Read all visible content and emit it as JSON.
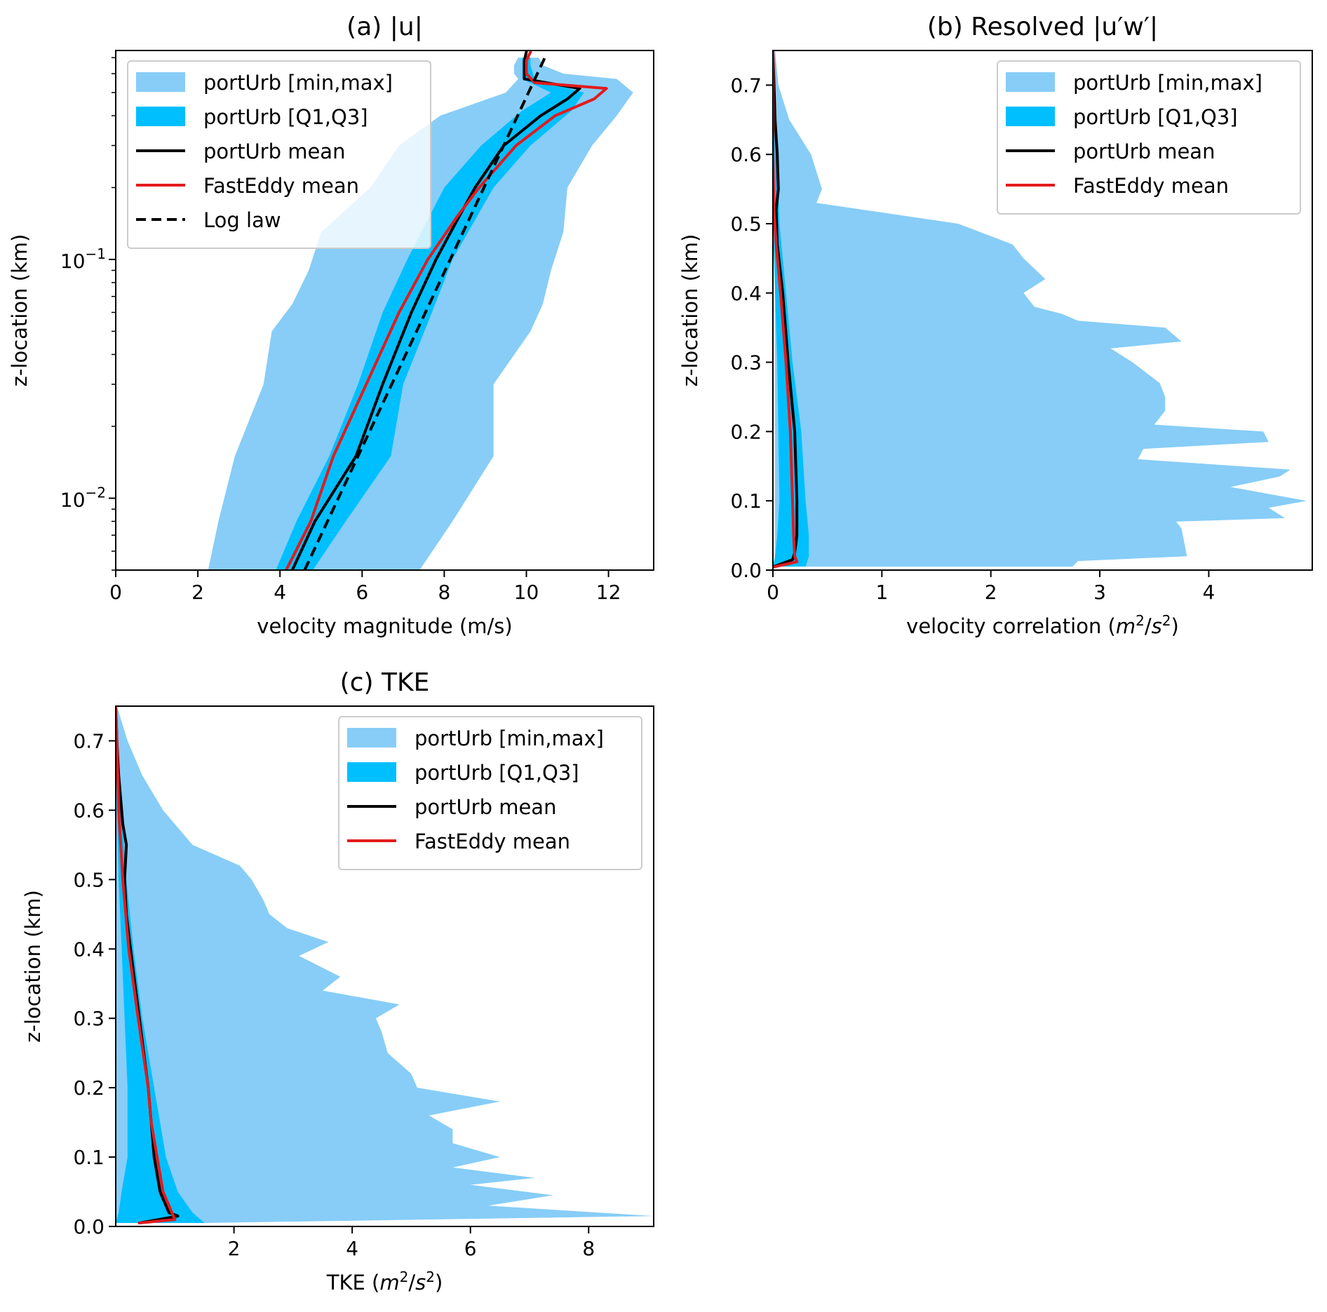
{
  "chart_data": [
    {
      "type": "area",
      "panel": "a",
      "title": "(a) |u|",
      "xlabel": "velocity magnitude (m/s)",
      "ylabel": "z-location (km)",
      "xlim": [
        0,
        13.1
      ],
      "ylim": [
        0.005,
        0.75
      ],
      "yscale": "log",
      "x_ticks": [
        "0",
        "2",
        "4",
        "6",
        "8",
        "10",
        "12"
      ],
      "x_tick_values": [
        0,
        2,
        4,
        6,
        8,
        10,
        12
      ],
      "y_ticks": [
        {
          "value": 0.1,
          "base": "10",
          "exp": "−1"
        },
        {
          "value": 0.01,
          "base": "10",
          "exp": "−2"
        }
      ],
      "legend": {
        "position": "top-left",
        "entries": [
          {
            "label": "portUrb [min,max]",
            "kind": "patch",
            "color": "#87cdf7"
          },
          {
            "label": "portUrb [Q1,Q3]",
            "kind": "patch",
            "color": "#00bfff"
          },
          {
            "label": "portUrb mean",
            "kind": "line",
            "color": "#000000"
          },
          {
            "label": "FastEddy mean",
            "kind": "line",
            "color": "#e31a1c"
          },
          {
            "label": "Log law",
            "kind": "dashed",
            "color": "#000000"
          }
        ]
      },
      "series": [
        {
          "name": "portUrb [min,max]",
          "kind": "band",
          "color": "#87cdf7",
          "z": [
            0.005,
            0.008,
            0.015,
            0.03,
            0.05,
            0.065,
            0.09,
            0.13,
            0.2,
            0.3,
            0.4,
            0.5,
            0.57,
            0.6,
            0.65,
            0.7
          ],
          "lower": [
            2.25,
            2.5,
            2.9,
            3.6,
            3.8,
            4.3,
            4.7,
            5.0,
            6.2,
            6.9,
            7.9,
            9.5,
            9.8,
            9.7,
            9.7,
            9.8
          ],
          "upper": [
            7.4,
            8.2,
            9.2,
            9.2,
            10.1,
            10.4,
            10.6,
            10.9,
            11.0,
            11.6,
            12.2,
            12.6,
            12.2,
            10.9,
            10.4,
            10.3
          ]
        },
        {
          "name": "portUrb [Q1,Q3]",
          "kind": "band",
          "color": "#00bfff",
          "z": [
            0.005,
            0.008,
            0.015,
            0.03,
            0.06,
            0.1,
            0.2,
            0.3,
            0.42,
            0.5,
            0.57,
            0.65,
            0.7
          ],
          "lower": [
            3.9,
            4.4,
            5.2,
            5.9,
            6.5,
            7.1,
            8.0,
            8.9,
            9.9,
            10.6,
            9.9,
            9.9,
            9.9
          ],
          "upper": [
            4.8,
            5.6,
            6.7,
            7.0,
            7.7,
            8.2,
            9.2,
            10.1,
            11.1,
            11.4,
            10.2,
            10.1,
            10.1
          ]
        },
        {
          "name": "portUrb mean",
          "kind": "line",
          "color": "#000000",
          "z": [
            0.005,
            0.008,
            0.015,
            0.03,
            0.06,
            0.1,
            0.15,
            0.2,
            0.3,
            0.4,
            0.47,
            0.52,
            0.57,
            0.62,
            0.68,
            0.74
          ],
          "x": [
            4.3,
            4.85,
            5.85,
            6.5,
            7.2,
            7.8,
            8.35,
            8.75,
            9.45,
            10.35,
            11.0,
            11.3,
            9.95,
            9.95,
            9.95,
            10.0
          ]
        },
        {
          "name": "FastEddy mean",
          "kind": "line",
          "color": "#e31a1c",
          "z": [
            0.005,
            0.008,
            0.015,
            0.03,
            0.06,
            0.1,
            0.15,
            0.2,
            0.3,
            0.4,
            0.47,
            0.52,
            0.55,
            0.6,
            0.68,
            0.74
          ],
          "x": [
            4.15,
            4.75,
            5.3,
            6.1,
            6.9,
            7.6,
            8.3,
            8.85,
            9.75,
            10.7,
            11.65,
            11.95,
            10.2,
            10.0,
            10.0,
            10.1
          ]
        },
        {
          "name": "Log law",
          "kind": "dashed",
          "color": "#000000",
          "z": [
            0.005,
            0.7
          ],
          "x": [
            4.6,
            10.45
          ]
        }
      ]
    },
    {
      "type": "area",
      "panel": "b",
      "title": "(b) Resolved |u′w′|",
      "xlabel": "velocity correlation (m²/s²)",
      "xlabel_text": "velocity correlation (",
      "xlabel_unit_m": "m",
      "xlabel_unit_s": "s",
      "xlabel_exp": "2",
      "ylabel": "z-location (km)",
      "xlim": [
        0,
        4.95
      ],
      "ylim": [
        0,
        0.75
      ],
      "x_ticks": [
        "0",
        "1",
        "2",
        "3",
        "4"
      ],
      "x_tick_values": [
        0,
        1,
        2,
        3,
        4
      ],
      "y_ticks": [
        "0.0",
        "0.1",
        "0.2",
        "0.3",
        "0.4",
        "0.5",
        "0.6",
        "0.7"
      ],
      "y_tick_values": [
        0,
        0.1,
        0.2,
        0.3,
        0.4,
        0.5,
        0.6,
        0.7
      ],
      "legend": {
        "position": "top-right",
        "entries": [
          {
            "label": "portUrb [min,max]",
            "kind": "patch",
            "color": "#87cdf7"
          },
          {
            "label": "portUrb [Q1,Q3]",
            "kind": "patch",
            "color": "#00bfff"
          },
          {
            "label": "portUrb mean",
            "kind": "line",
            "color": "#000000"
          },
          {
            "label": "FastEddy mean",
            "kind": "line",
            "color": "#e31a1c"
          }
        ]
      },
      "series": [
        {
          "name": "portUrb [min,max]",
          "kind": "band",
          "color": "#87cdf7",
          "z": [
            0.005,
            0.013,
            0.02,
            0.06,
            0.07,
            0.075,
            0.09,
            0.1,
            0.12,
            0.135,
            0.145,
            0.16,
            0.175,
            0.185,
            0.2,
            0.21,
            0.23,
            0.25,
            0.27,
            0.3,
            0.32,
            0.33,
            0.35,
            0.36,
            0.37,
            0.38,
            0.4,
            0.42,
            0.45,
            0.47,
            0.5,
            0.53,
            0.55,
            0.6,
            0.65,
            0.7,
            0.75
          ],
          "lower": [
            0.02,
            0.02,
            0.02,
            0.02,
            0.02,
            0.02,
            0.02,
            0.02,
            0.02,
            0.02,
            0.02,
            0.02,
            0.02,
            0.02,
            0.02,
            0.02,
            0.02,
            0.02,
            0.02,
            0.02,
            0.02,
            0.02,
            0.02,
            0.02,
            0.02,
            0.02,
            0.02,
            0.02,
            0.02,
            0.02,
            0.01,
            0.0,
            0.0,
            0.0,
            0.0,
            0.0,
            0.0
          ],
          "upper": [
            2.75,
            2.8,
            3.8,
            3.75,
            3.7,
            4.7,
            4.55,
            4.9,
            4.2,
            4.65,
            4.75,
            3.35,
            3.4,
            4.55,
            4.5,
            3.5,
            3.6,
            3.6,
            3.55,
            3.3,
            3.1,
            3.75,
            3.6,
            2.8,
            2.65,
            2.4,
            2.3,
            2.5,
            2.3,
            2.2,
            1.7,
            0.4,
            0.45,
            0.35,
            0.15,
            0.05,
            0.02
          ]
        },
        {
          "name": "portUrb [Q1,Q3]",
          "kind": "band",
          "color": "#00bfff",
          "z": [
            0.005,
            0.02,
            0.05,
            0.1,
            0.2,
            0.3,
            0.4,
            0.5,
            0.6,
            0.7,
            0.75
          ],
          "lower": [
            0.0,
            0.02,
            0.04,
            0.06,
            0.05,
            0.04,
            0.02,
            0.0,
            0.0,
            0.0,
            0.0
          ],
          "upper": [
            0.3,
            0.33,
            0.33,
            0.3,
            0.26,
            0.18,
            0.12,
            0.06,
            0.04,
            0.01,
            0.0
          ]
        },
        {
          "name": "portUrb mean",
          "kind": "line",
          "color": "#000000",
          "z": [
            0.005,
            0.015,
            0.025,
            0.05,
            0.1,
            0.2,
            0.3,
            0.4,
            0.47,
            0.52,
            0.55,
            0.6,
            0.65,
            0.7,
            0.75
          ],
          "x": [
            0.01,
            0.18,
            0.2,
            0.22,
            0.22,
            0.2,
            0.14,
            0.09,
            0.04,
            0.03,
            0.05,
            0.04,
            0.02,
            0.01,
            0.0
          ]
        },
        {
          "name": "FastEddy mean",
          "kind": "line",
          "color": "#e31a1c",
          "z": [
            0.005,
            0.012,
            0.02,
            0.05,
            0.1,
            0.2,
            0.3,
            0.4,
            0.47,
            0.52,
            0.6,
            0.7,
            0.75
          ],
          "x": [
            0.02,
            0.22,
            0.2,
            0.19,
            0.18,
            0.16,
            0.12,
            0.07,
            0.03,
            0.01,
            0.0,
            0.0,
            0.0
          ]
        }
      ]
    },
    {
      "type": "area",
      "panel": "c",
      "title": "(c) TKE",
      "xlabel": "TKE (m²/s²)",
      "xlabel_text": "TKE (",
      "xlabel_unit_m": "m",
      "xlabel_unit_s": "s",
      "xlabel_exp": "2",
      "ylabel": "z-location (km)",
      "xlim": [
        0,
        9.1
      ],
      "ylim": [
        0,
        0.75
      ],
      "x_ticks": [
        "2",
        "4",
        "6",
        "8"
      ],
      "x_tick_values": [
        2,
        4,
        6,
        8
      ],
      "y_ticks": [
        "0.0",
        "0.1",
        "0.2",
        "0.3",
        "0.4",
        "0.5",
        "0.6",
        "0.7"
      ],
      "y_tick_values": [
        0,
        0.1,
        0.2,
        0.3,
        0.4,
        0.5,
        0.6,
        0.7
      ],
      "legend": {
        "position": "top-right",
        "entries": [
          {
            "label": "portUrb [min,max]",
            "kind": "patch",
            "color": "#87cdf7"
          },
          {
            "label": "portUrb [Q1,Q3]",
            "kind": "patch",
            "color": "#00bfff"
          },
          {
            "label": "portUrb mean",
            "kind": "line",
            "color": "#000000"
          },
          {
            "label": "FastEddy mean",
            "kind": "line",
            "color": "#e31a1c"
          }
        ]
      },
      "series": [
        {
          "name": "portUrb [min,max]",
          "kind": "band",
          "color": "#87cdf7",
          "z": [
            0.005,
            0.015,
            0.03,
            0.045,
            0.06,
            0.07,
            0.085,
            0.1,
            0.12,
            0.14,
            0.16,
            0.18,
            0.2,
            0.22,
            0.25,
            0.28,
            0.3,
            0.32,
            0.34,
            0.36,
            0.39,
            0.41,
            0.43,
            0.45,
            0.47,
            0.5,
            0.52,
            0.55,
            0.6,
            0.65,
            0.7,
            0.75
          ],
          "lower": [
            0.0,
            0.0,
            0.0,
            0.0,
            0.0,
            0.0,
            0.0,
            0.0,
            0.0,
            0.0,
            0.0,
            0.0,
            0.0,
            0.0,
            0.0,
            0.0,
            0.0,
            0.0,
            0.0,
            0.0,
            0.0,
            0.0,
            0.0,
            0.0,
            0.0,
            0.0,
            0.0,
            0.0,
            0.0,
            0.0,
            0.0,
            0.0
          ],
          "upper": [
            1.5,
            9.1,
            6.3,
            7.4,
            6.0,
            7.1,
            5.7,
            6.5,
            5.7,
            5.7,
            5.3,
            6.5,
            5.1,
            5.0,
            4.6,
            4.5,
            4.4,
            4.8,
            3.5,
            3.8,
            3.1,
            3.6,
            2.9,
            2.6,
            2.5,
            2.3,
            2.1,
            1.3,
            0.8,
            0.45,
            0.2,
            0.02
          ]
        },
        {
          "name": "portUrb [Q1,Q3]",
          "kind": "band",
          "color": "#00bfff",
          "z": [
            0.005,
            0.02,
            0.05,
            0.1,
            0.2,
            0.3,
            0.4,
            0.5,
            0.6,
            0.7,
            0.75
          ],
          "lower": [
            0.0,
            0.05,
            0.1,
            0.2,
            0.2,
            0.15,
            0.1,
            0.05,
            0.02,
            0.0,
            0.0
          ],
          "upper": [
            1.5,
            1.3,
            1.05,
            0.85,
            0.65,
            0.45,
            0.3,
            0.18,
            0.1,
            0.03,
            0.0
          ]
        },
        {
          "name": "portUrb mean",
          "kind": "line",
          "color": "#000000",
          "z": [
            0.005,
            0.015,
            0.02,
            0.05,
            0.1,
            0.15,
            0.2,
            0.3,
            0.4,
            0.45,
            0.5,
            0.55,
            0.58,
            0.6,
            0.65,
            0.7,
            0.75
          ],
          "x": [
            0.4,
            1.05,
            0.9,
            0.75,
            0.65,
            0.6,
            0.55,
            0.4,
            0.25,
            0.18,
            0.15,
            0.18,
            0.12,
            0.1,
            0.05,
            0.02,
            0.0
          ]
        },
        {
          "name": "FastEddy mean",
          "kind": "line",
          "color": "#e31a1c",
          "z": [
            0.005,
            0.01,
            0.02,
            0.05,
            0.1,
            0.15,
            0.2,
            0.3,
            0.4,
            0.5,
            0.6,
            0.7,
            0.75
          ],
          "x": [
            0.4,
            1.0,
            0.95,
            0.8,
            0.7,
            0.6,
            0.55,
            0.38,
            0.22,
            0.12,
            0.05,
            0.02,
            0.0
          ]
        }
      ]
    }
  ]
}
